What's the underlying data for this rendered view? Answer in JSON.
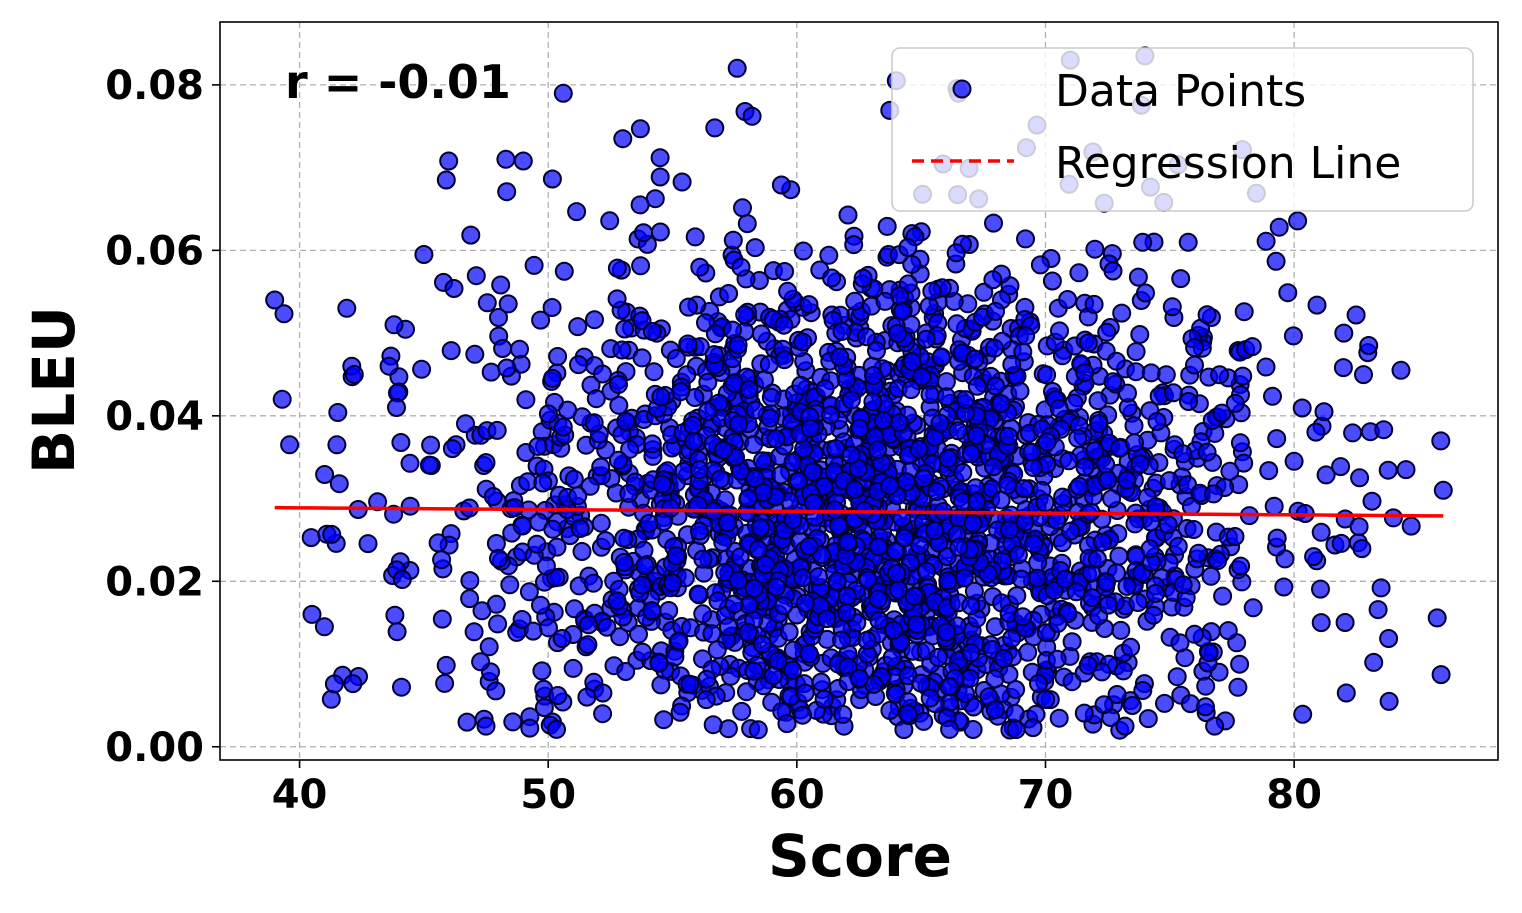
{
  "chart_data": {
    "type": "scatter",
    "xlabel": "Score",
    "ylabel": "BLEU",
    "xlim": [
      36.8,
      88.2
    ],
    "ylim": [
      -0.0016,
      0.0876
    ],
    "xticks": [
      40,
      50,
      60,
      70,
      80
    ],
    "yticks": [
      0.0,
      0.02,
      0.04,
      0.06,
      0.08
    ],
    "ytick_labels": [
      "0.00",
      "0.02",
      "0.04",
      "0.06",
      "0.08"
    ],
    "grid": true,
    "legend_position": "top-right",
    "annotation": "r = -0.01",
    "series": [
      {
        "name": "Data Points",
        "kind": "scatter",
        "color": "#0000ff",
        "edgecolor": "#000000",
        "n_points": 2400,
        "x_distribution": {
          "mean": 63,
          "sd": 8.2,
          "min": 39,
          "max": 86
        },
        "y_distribution": {
          "mean": 0.028,
          "sd": 0.017,
          "min": 0.002,
          "max": 0.084
        },
        "sample_points": [
          [
            39.0,
            0.054
          ],
          [
            39.3,
            0.042
          ],
          [
            39.6,
            0.0365
          ],
          [
            40.5,
            0.016
          ],
          [
            41.0,
            0.0145
          ],
          [
            41.5,
            0.0365
          ],
          [
            41.6,
            0.0318
          ],
          [
            41.9,
            0.053
          ],
          [
            42.1,
            0.046
          ],
          [
            42.2,
            0.045
          ],
          [
            43.6,
            0.046
          ],
          [
            43.8,
            0.051
          ],
          [
            43.9,
            0.041
          ],
          [
            45.0,
            0.0595
          ],
          [
            45.9,
            0.0685
          ],
          [
            46.0,
            0.0708
          ],
          [
            47.5,
            0.0025
          ],
          [
            48.3,
            0.071
          ],
          [
            49.0,
            0.0708
          ],
          [
            53.0,
            0.0735
          ],
          [
            54.5,
            0.0712
          ],
          [
            56.7,
            0.0748
          ],
          [
            57.6,
            0.082
          ],
          [
            58.2,
            0.0762
          ],
          [
            64.0,
            0.0805
          ],
          [
            66.5,
            0.079
          ],
          [
            71.0,
            0.083
          ],
          [
            74.0,
            0.0835
          ],
          [
            79.4,
            0.0628
          ],
          [
            80.0,
            0.0345
          ],
          [
            81.2,
            0.0405
          ],
          [
            82.0,
            0.05
          ],
          [
            83.0,
            0.0485
          ],
          [
            84.3,
            0.0455
          ],
          [
            84.5,
            0.0335
          ],
          [
            86.0,
            0.031
          ],
          [
            83.5,
            0.0192
          ],
          [
            82.1,
            0.0065
          ],
          [
            83.2,
            0.0102
          ],
          [
            76.8,
            0.0025
          ],
          [
            73.2,
            0.0025
          ],
          [
            59.6,
            0.0028
          ],
          [
            52.2,
            0.0065
          ],
          [
            44.1,
            0.0072
          ],
          [
            41.4,
            0.0076
          ]
        ]
      },
      {
        "name": "Regression Line",
        "kind": "line",
        "color": "#ff0000",
        "style": "dashed",
        "x": [
          39.0,
          86.0
        ],
        "y": [
          0.0289,
          0.0279
        ]
      }
    ]
  }
}
